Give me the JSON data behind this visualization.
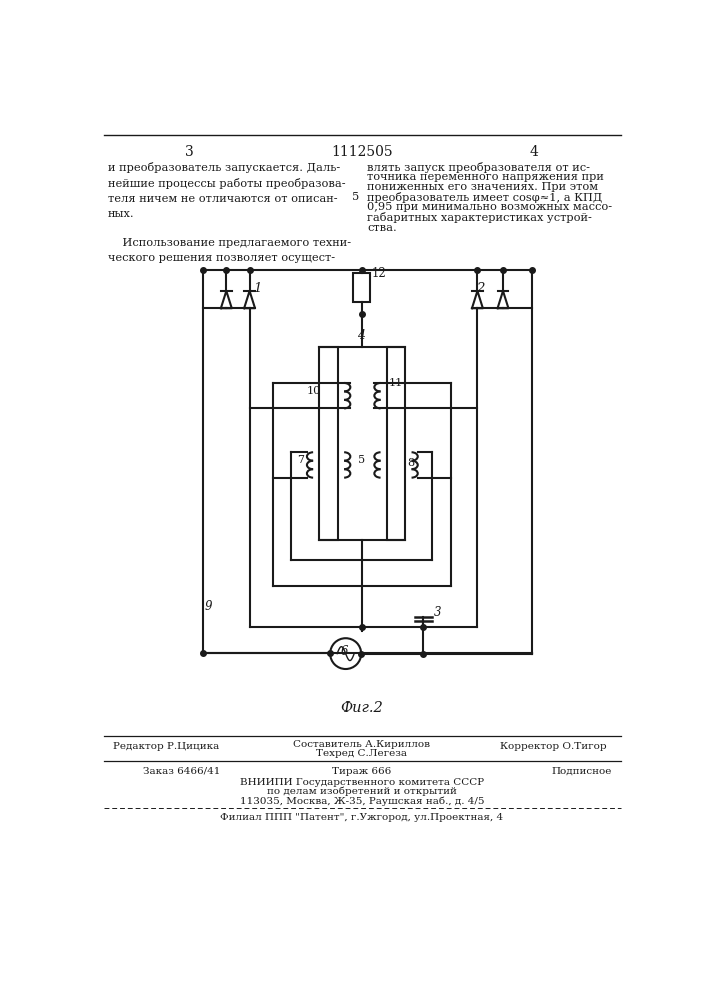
{
  "page_number_left": "3",
  "patent_number": "1112505",
  "page_number_right": "4",
  "text_left": "и преобразователь запускается. Даль-\nнейшие процессы работы преобразова-\nтеля ничем не отличаются от описан-\nных.\n\n    Использование предлагаемого техни-\nческого решения позволяет осущест-",
  "text_right": "влять запуск преобразователя от ис-\nточника переменного напряжения при\nпониженных его значениях. При этом\nпреобразователь имеет cosφ≈1, а КПД\n0,95 при минимально возможных массо-\nгабаритных характеристиках устрой-\nства.",
  "fig_label": "Фиг.2",
  "footer_editor": "Редактор Р.Цицика",
  "footer_composer": "Составитель А.Кириллов",
  "footer_techred": "Техред С.Легеза",
  "footer_corrector": "Корректор О.Тигор",
  "footer_order": "Заказ 6466/41",
  "footer_circulation": "Тираж 666",
  "footer_subscription": "Подписное",
  "footer_vnipi": "ВНИИПИ Государственного комитета СССР",
  "footer_affairs": "по делам изобретений и открытий",
  "footer_address": "113035, Москва, Ж-35, Раушская наб., д. 4/5",
  "footer_filial": "Филиал ППП \"Патент\", г.Ужгород, ул.Проектная, 4",
  "bg_color": "#ffffff",
  "text_color": "#1a1a1a",
  "line_color": "#1a1a1a"
}
